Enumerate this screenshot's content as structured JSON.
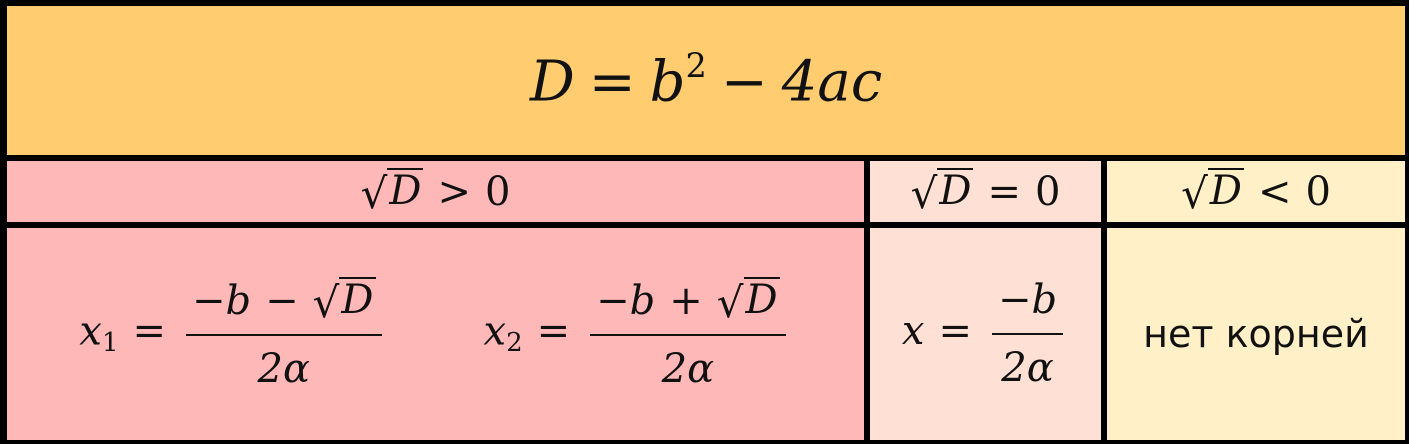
{
  "header": {
    "D": "D",
    "eq": "=",
    "b": "b",
    "sq": "2",
    "minus": "−",
    "rest": "4ac"
  },
  "conditions": {
    "pos": {
      "rad": "D",
      "rel": ">",
      "val": "0"
    },
    "zero": {
      "rad": "D",
      "rel": "=",
      "val": "0"
    },
    "neg": {
      "rad": "D",
      "rel": "<",
      "val": "0"
    }
  },
  "two_roots": {
    "x1": {
      "var": "x",
      "idx": "1",
      "eq": "=",
      "num_a": "−b",
      "num_op": "−",
      "num_rad": "D",
      "den": "2α"
    },
    "x2": {
      "var": "x",
      "idx": "2",
      "eq": "=",
      "num_a": "−b",
      "num_op": "+",
      "num_rad": "D",
      "den": "2α"
    }
  },
  "one_root": {
    "var": "x",
    "eq": "=",
    "num": "−b",
    "den": "2α"
  },
  "no_roots": "нет корней",
  "colors": {
    "header_bg": "#ffcd6f",
    "positive_bg": "#ffb8b8",
    "zero_bg": "#ffe0d4",
    "negative_bg": "#fff0c8",
    "border": "#000000"
  }
}
